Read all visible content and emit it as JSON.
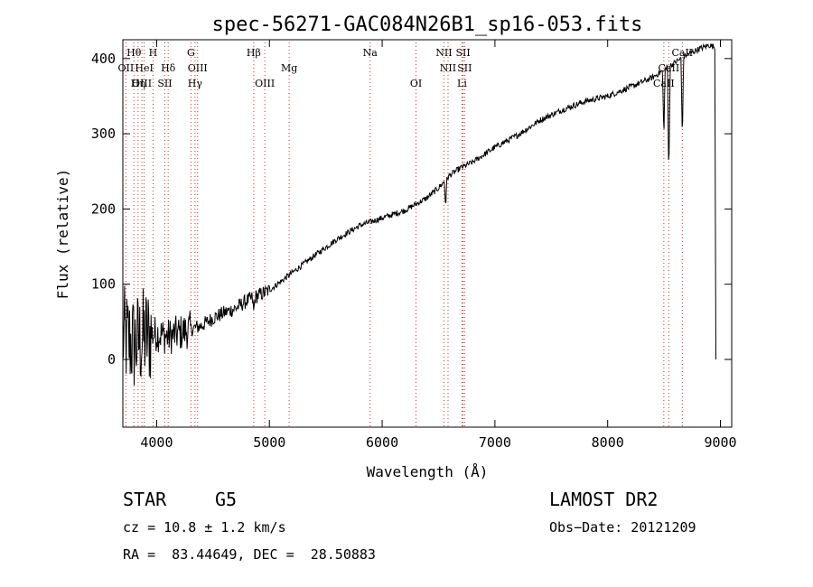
{
  "chart_data": {
    "type": "line",
    "title": "spec-56271-GAC084N26B1_sp16-053.fits",
    "xlabel": "Wavelength (Å)",
    "ylabel": "Flux (relative)",
    "xlim": [
      3700,
      9100
    ],
    "ylim": [
      -90,
      425
    ],
    "x_ticks": [
      4000,
      5000,
      6000,
      7000,
      8000,
      9000
    ],
    "y_ticks": [
      0,
      100,
      200,
      300,
      400
    ],
    "grid": false,
    "line_color": "#000000",
    "marker_color": "#cc3333",
    "spectrum_anchors": {
      "x": [
        3700,
        3800,
        3900,
        4000,
        4100,
        4200,
        4300,
        4400,
        4500,
        4600,
        4700,
        4800,
        4900,
        5000,
        5200,
        5400,
        5600,
        5800,
        6000,
        6200,
        6400,
        6500,
        6600,
        6700,
        6800,
        7000,
        7200,
        7400,
        7600,
        7800,
        8000,
        8200,
        8400,
        8500,
        8600,
        8700,
        8800,
        8900,
        8950
      ],
      "y": [
        30,
        20,
        30,
        35,
        30,
        35,
        40,
        45,
        55,
        62,
        68,
        78,
        85,
        92,
        115,
        138,
        160,
        178,
        188,
        198,
        215,
        228,
        245,
        255,
        262,
        282,
        298,
        318,
        332,
        343,
        350,
        362,
        375,
        385,
        395,
        405,
        412,
        418,
        415
      ]
    },
    "absorption_features": [
      {
        "x": 8498,
        "depth": 90
      },
      {
        "x": 8542,
        "depth": 150
      },
      {
        "x": 8662,
        "depth": 110
      },
      {
        "x": 6563,
        "depth": 35
      },
      {
        "x": 4861,
        "depth": 20
      }
    ],
    "noise": [
      {
        "x_max": 3950,
        "amplitude": 70
      },
      {
        "x_max": 4300,
        "amplitude": 25
      },
      {
        "x_max": 5000,
        "amplitude": 10
      },
      {
        "x_max": 9100,
        "amplitude": 4
      }
    ],
    "line_markers": [
      {
        "label": "Hθ",
        "x": 3798,
        "row": 0
      },
      {
        "label": "OII",
        "x": 3727,
        "row": 1
      },
      {
        "label": "OIII",
        "x": 3869,
        "row": 2
      },
      {
        "label": "H",
        "x": 3968,
        "row": 0
      },
      {
        "label": "HeI",
        "x": 3889,
        "row": 1
      },
      {
        "label": "Hη",
        "x": 3835,
        "row": 2
      },
      {
        "label": "Hδ",
        "x": 4102,
        "row": 1
      },
      {
        "label": "SII",
        "x": 4072,
        "row": 2
      },
      {
        "label": "G",
        "x": 4304,
        "row": 0
      },
      {
        "label": "OIII",
        "x": 4363,
        "row": 1
      },
      {
        "label": "Hγ",
        "x": 4340,
        "row": 2
      },
      {
        "label": "Hβ",
        "x": 4861,
        "row": 0
      },
      {
        "label": "OIII",
        "x": 4959,
        "row": 2
      },
      {
        "label": "Mg",
        "x": 5175,
        "row": 1
      },
      {
        "label": "Na",
        "x": 5893,
        "row": 0
      },
      {
        "label": "OI",
        "x": 6300,
        "row": 2
      },
      {
        "label": "NII",
        "x": 6548,
        "row": 0
      },
      {
        "label": "NII",
        "x": 6584,
        "row": 1
      },
      {
        "label": "SII",
        "x": 6717,
        "row": 0
      },
      {
        "label": "SII",
        "x": 6731,
        "row": 1
      },
      {
        "label": "Li",
        "x": 6708,
        "row": 2
      },
      {
        "label": "CaII",
        "x": 8662,
        "row": 0
      },
      {
        "label": "CaII",
        "x": 8542,
        "row": 1
      },
      {
        "label": "CaII",
        "x": 8498,
        "row": 2
      }
    ]
  },
  "info": {
    "object_type": "STAR",
    "subclass": "G5",
    "survey": "LAMOST DR2",
    "cz": "cz = 10.8 ± 1.2 km/s",
    "obs_date": "Obs−Date: 20121209",
    "coords": "RA =  83.44649, DEC =  28.50883"
  }
}
